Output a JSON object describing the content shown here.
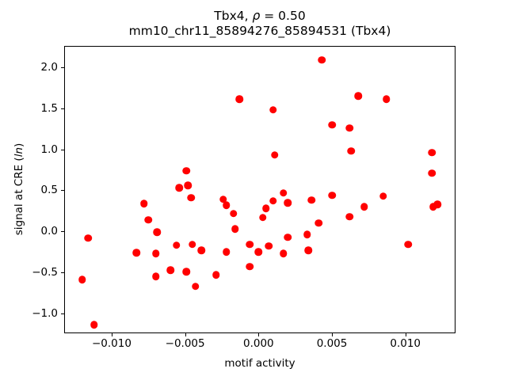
{
  "title": {
    "line1_prefix": "Tbx4, ",
    "line1_rho": "ρ",
    "line1_suffix": " = 0.50",
    "line2": "mm10_chr11_85894276_85894531 (Tbx4)"
  },
  "axes": {
    "xlabel": "motif activity",
    "ylabel_prefix": "signal at CRE (",
    "ylabel_italic": "ln",
    "ylabel_suffix": ")"
  },
  "chart_data": {
    "type": "scatter",
    "title": "Tbx4, ρ = 0.50",
    "subtitle": "mm10_chr11_85894276_85894531 (Tbx4)",
    "xlabel": "motif activity",
    "ylabel": "signal at CRE (ln)",
    "marker_color": "#ff0000",
    "grid": false,
    "legend": "none",
    "xlim": [
      -0.01318,
      0.01336
    ],
    "ylim": [
      -1.232,
      2.251
    ],
    "x_ticks": [
      -0.01,
      -0.005,
      0.0,
      0.005,
      0.01
    ],
    "x_tick_labels": [
      "−0.010",
      "−0.005",
      "0.000",
      "0.005",
      "0.010"
    ],
    "y_ticks": [
      -1.0,
      -0.5,
      0.0,
      0.5,
      1.0,
      1.5,
      2.0
    ],
    "y_tick_labels": [
      "−1.0",
      "−0.5",
      "0.0",
      "0.5",
      "1.0",
      "1.5",
      "2.0"
    ],
    "points": [
      [
        0.0043,
        2.09
      ],
      [
        0.0068,
        1.65
      ],
      [
        0.0087,
        1.61
      ],
      [
        -0.0013,
        1.61
      ],
      [
        0.001,
        1.48
      ],
      [
        0.005,
        1.3
      ],
      [
        0.0062,
        1.26
      ],
      [
        0.0063,
        0.98
      ],
      [
        0.0118,
        0.96
      ],
      [
        0.0011,
        0.93
      ],
      [
        -0.0049,
        0.74
      ],
      [
        0.0118,
        0.71
      ],
      [
        -0.0054,
        0.53
      ],
      [
        -0.0048,
        0.56
      ],
      [
        -0.0046,
        0.41
      ],
      [
        0.0017,
        0.47
      ],
      [
        0.005,
        0.44
      ],
      [
        0.0085,
        0.43
      ],
      [
        0.0119,
        0.3
      ],
      [
        0.0122,
        0.33
      ],
      [
        -0.0078,
        0.34
      ],
      [
        -0.0075,
        0.14
      ],
      [
        -0.0069,
        -0.01
      ],
      [
        -0.0116,
        -0.08
      ],
      [
        -0.0083,
        -0.26
      ],
      [
        -0.007,
        -0.27
      ],
      [
        -0.0024,
        0.39
      ],
      [
        -0.0022,
        0.32
      ],
      [
        -0.0017,
        0.22
      ],
      [
        -0.0016,
        0.03
      ],
      [
        0.001,
        0.37
      ],
      [
        0.0005,
        0.28
      ],
      [
        0.0003,
        0.17
      ],
      [
        -0.0056,
        -0.17
      ],
      [
        -0.0045,
        -0.16
      ],
      [
        -0.0039,
        -0.23
      ],
      [
        -0.0022,
        -0.25
      ],
      [
        -0.0006,
        -0.16
      ],
      [
        0.0,
        -0.25
      ],
      [
        0.0007,
        -0.18
      ],
      [
        0.002,
        0.35
      ],
      [
        0.0036,
        0.38
      ],
      [
        0.0072,
        0.3
      ],
      [
        0.0062,
        0.18
      ],
      [
        0.0041,
        0.1
      ],
      [
        0.0033,
        -0.04
      ],
      [
        0.002,
        -0.07
      ],
      [
        0.0034,
        -0.23
      ],
      [
        0.0017,
        -0.27
      ],
      [
        0.0102,
        -0.16
      ],
      [
        -0.012,
        -0.59
      ],
      [
        -0.0112,
        -1.14
      ],
      [
        -0.007,
        -0.55
      ],
      [
        -0.006,
        -0.47
      ],
      [
        -0.0049,
        -0.49
      ],
      [
        -0.0043,
        -0.67
      ],
      [
        -0.0029,
        -0.53
      ],
      [
        -0.0006,
        -0.43
      ]
    ]
  }
}
